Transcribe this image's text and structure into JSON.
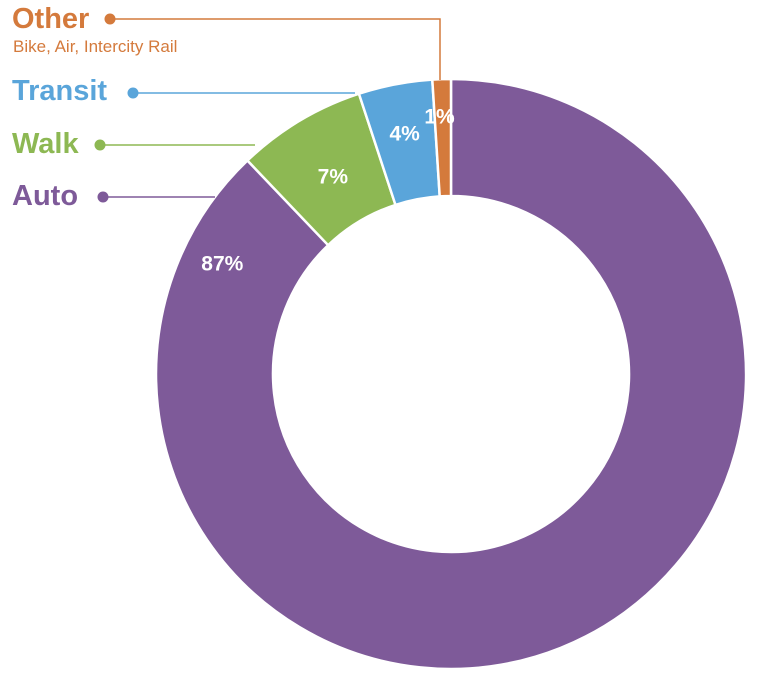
{
  "chart_data": {
    "type": "pie",
    "title": "",
    "slices": [
      {
        "label": "Auto",
        "value": 87,
        "value_label": "87%",
        "sublabel": "",
        "color": "#7e5a99"
      },
      {
        "label": "Walk",
        "value": 7,
        "value_label": "7%",
        "sublabel": "",
        "color": "#8db853"
      },
      {
        "label": "Transit",
        "value": 4,
        "value_label": "4%",
        "sublabel": "",
        "color": "#5aa5da"
      },
      {
        "label": "Other",
        "value": 1,
        "value_label": "1%",
        "sublabel": "Bike, Air, Intercity Rail",
        "color": "#d47a3c"
      }
    ],
    "style": "donut",
    "start_angle": "12 o'clock",
    "direction": "clockwise",
    "legend_position": "top-left",
    "background_color": "#ffffff"
  }
}
